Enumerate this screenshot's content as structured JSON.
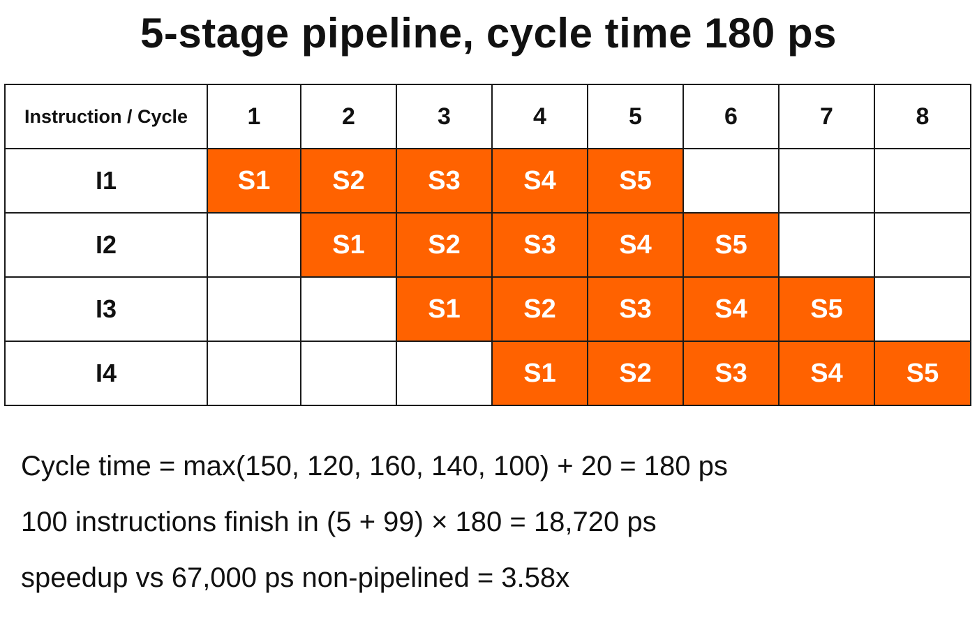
{
  "title": "5-stage pipeline, cycle time 180 ps",
  "table": {
    "corner_label": "Instruction / Cycle",
    "cycles": [
      "1",
      "2",
      "3",
      "4",
      "5",
      "6",
      "7",
      "8"
    ],
    "rows": [
      {
        "label": "I1",
        "cells": [
          "S1",
          "S2",
          "S3",
          "S4",
          "S5",
          "",
          "",
          ""
        ]
      },
      {
        "label": "I2",
        "cells": [
          "",
          "S1",
          "S2",
          "S3",
          "S4",
          "S5",
          "",
          ""
        ]
      },
      {
        "label": "I3",
        "cells": [
          "",
          "",
          "S1",
          "S2",
          "S3",
          "S4",
          "S5",
          ""
        ]
      },
      {
        "label": "I4",
        "cells": [
          "",
          "",
          "",
          "S1",
          "S2",
          "S3",
          "S4",
          "S5"
        ]
      }
    ]
  },
  "notes": {
    "cycle_time": "Cycle time = max(150, 120, 160, 140, 100) + 20 = 180 ps",
    "total_time": "100 instructions finish in (5 + 99) × 180 = 18,720 ps",
    "speedup": "speedup vs 67,000 ps non-pipelined = 3.58x"
  },
  "colors": {
    "stage_fill": "#ff6200",
    "stage_text": "#ffffff",
    "grid": "#1a1a1a"
  }
}
